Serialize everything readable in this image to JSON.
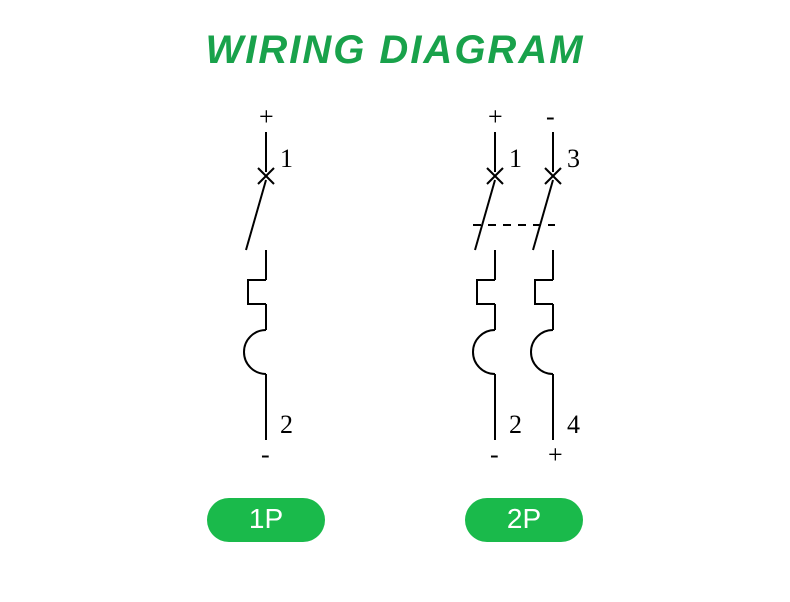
{
  "title": {
    "text": "WIRING DIAGRAM",
    "color": "#19a24b",
    "fontsize": 40
  },
  "panels": [
    {
      "badge": "1P",
      "poles": [
        {
          "top": "+",
          "bottom": "-",
          "in": "1",
          "out": "2"
        }
      ]
    },
    {
      "badge": "2P",
      "linked": true,
      "poles": [
        {
          "top": "+",
          "bottom": "-",
          "in": "1",
          "out": "2"
        },
        {
          "top": "-",
          "bottom": "+",
          "in": "3",
          "out": "4"
        }
      ]
    }
  ],
  "style": {
    "stroke": "#000000",
    "stroke_width": 2,
    "text_color": "#000000",
    "label_fontsize": 26,
    "badge_bg": "#1aba4b",
    "badge_color": "#ffffff",
    "badge_fontsize": 28,
    "badge_width": 118,
    "badge_height": 44,
    "pole_spacing": 58,
    "pole_width": 60
  }
}
